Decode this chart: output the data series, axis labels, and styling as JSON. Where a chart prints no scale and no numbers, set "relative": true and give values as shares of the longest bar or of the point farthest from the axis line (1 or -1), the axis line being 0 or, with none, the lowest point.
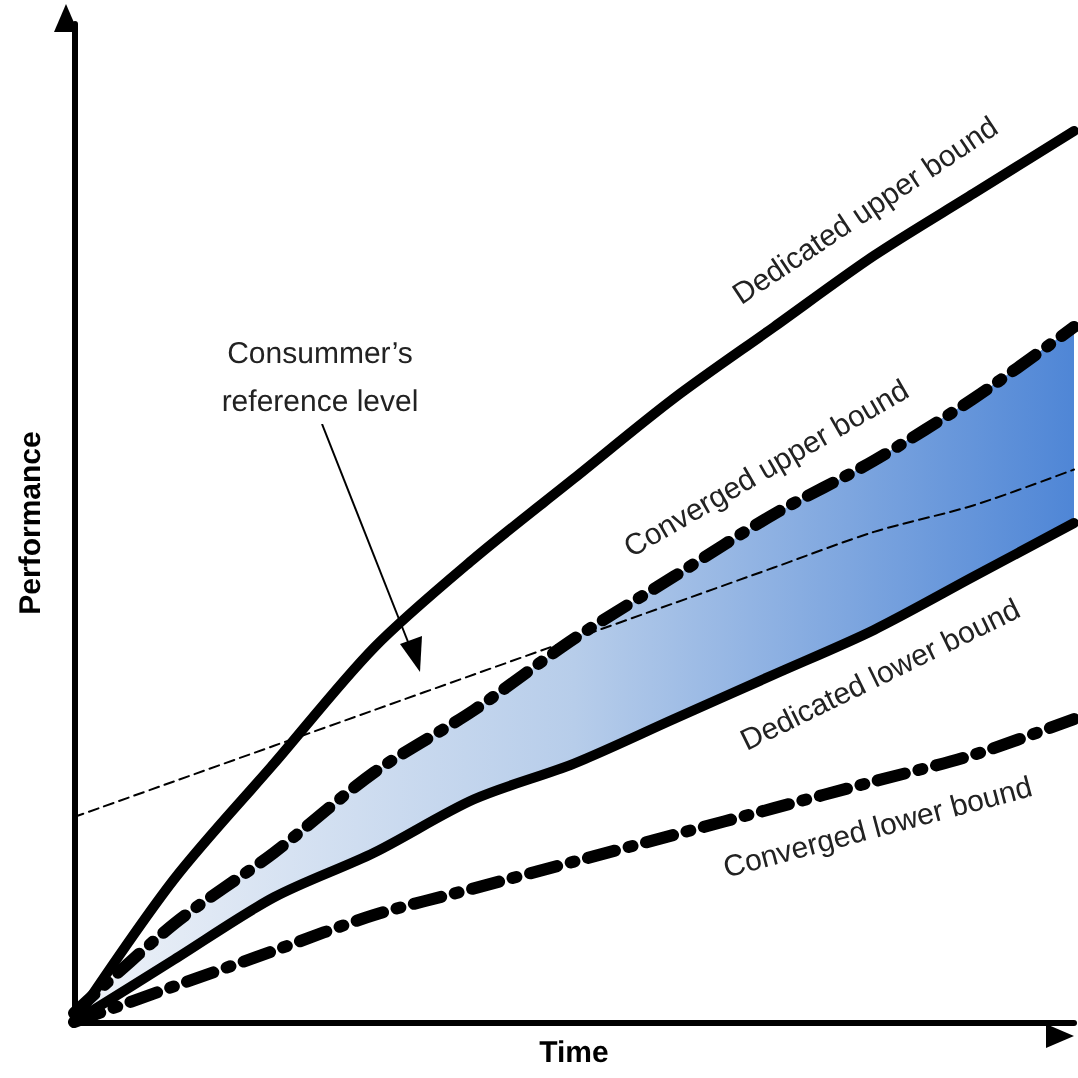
{
  "chart_data": {
    "type": "line",
    "relative": true,
    "xlabel": "Time",
    "ylabel": "Performance",
    "categories": [
      null,
      null,
      null,
      null,
      null,
      null,
      null,
      null,
      null,
      null,
      null
    ],
    "series": [
      {
        "name": "Dedicated upper bound",
        "color": "#000000",
        "line_style": "solid",
        "values": [
          0,
          0.16,
          0.29,
          0.42,
          0.52,
          0.61,
          0.7,
          0.78,
          0.86,
          0.93,
          1
        ]
      },
      {
        "name": "Converged upper bound",
        "color": "#000000",
        "line_style": "dashed",
        "values": [
          0.01,
          0.11,
          0.19,
          0.28,
          0.35,
          0.43,
          0.5,
          0.57,
          0.63,
          0.7,
          0.78
        ],
        "lower": [
          0,
          0.07,
          0.14,
          0.19,
          0.25,
          0.29,
          0.34,
          0.39,
          0.44,
          0.5,
          0.56
        ],
        "upper": [
          0.01,
          0.11,
          0.19,
          0.28,
          0.35,
          0.43,
          0.5,
          0.57,
          0.63,
          0.7,
          0.78
        ]
      },
      {
        "name": "Dedicated lower bound",
        "color": "#000000",
        "line_style": "solid",
        "values": [
          0,
          0.07,
          0.14,
          0.19,
          0.25,
          0.29,
          0.34,
          0.39,
          0.44,
          0.5,
          0.56
        ]
      },
      {
        "name": "Converged lower bound",
        "color": "#000000",
        "line_style": "dashed",
        "values": [
          0,
          0.04,
          0.08,
          0.12,
          0.15,
          0.18,
          0.21,
          0.24,
          0.27,
          0.3,
          0.34
        ]
      },
      {
        "type": "line",
        "color": "#000000",
        "line_style": "dotted",
        "values": [
          0.23,
          0.27,
          0.31,
          0.35,
          0.39,
          0.43,
          0.47,
          0.51,
          0.55,
          0.58,
          0.62
        ]
      }
    ],
    "annotations": [
      "Consummer’s\nreference level"
    ],
    "legend": false,
    "grid": false,
    "marker": "none"
  }
}
